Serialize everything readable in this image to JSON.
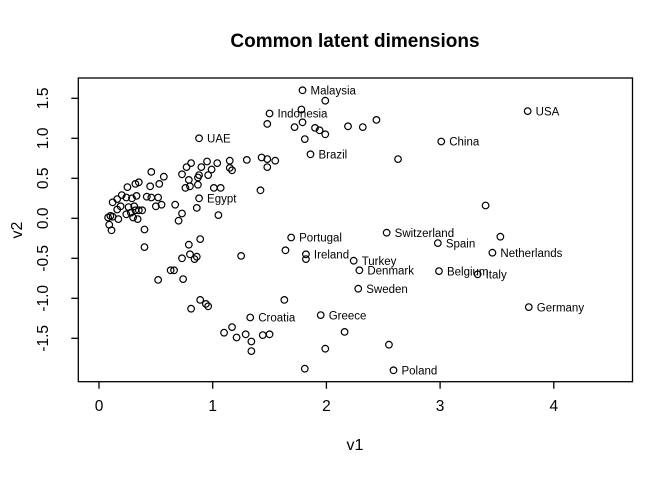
{
  "title": "Common latent dimensions",
  "colors": {
    "foreground": "#000000",
    "background": "#ffffff"
  },
  "chart_data": {
    "type": "scatter",
    "title": "Common latent dimensions",
    "xlabel": "v1",
    "ylabel": "v2",
    "xlim": [
      -0.18,
      4.69
    ],
    "ylim": [
      -2.04,
      1.75
    ],
    "grid": false,
    "legend": false,
    "marker": "open-circle",
    "x_ticks": [
      {
        "value": 0,
        "label": "0"
      },
      {
        "value": 1,
        "label": "1"
      },
      {
        "value": 2,
        "label": "2"
      },
      {
        "value": 3,
        "label": "3"
      },
      {
        "value": 4,
        "label": "4"
      }
    ],
    "y_ticks": [
      {
        "value": -1.5,
        "label": "-1.5"
      },
      {
        "value": -1.0,
        "label": "-1.0"
      },
      {
        "value": -0.5,
        "label": "-0.5"
      },
      {
        "value": 0.0,
        "label": "0.0"
      },
      {
        "value": 0.5,
        "label": "0.5"
      },
      {
        "value": 1.0,
        "label": "1.0"
      },
      {
        "value": 1.5,
        "label": "1.5"
      }
    ],
    "labeled_points": [
      {
        "label": "Malaysia",
        "x": 1.79,
        "y": 1.6
      },
      {
        "label": "USA",
        "x": 3.77,
        "y": 1.34
      },
      {
        "label": "Indonesia",
        "x": 1.5,
        "y": 1.31
      },
      {
        "label": "UAE",
        "x": 0.88,
        "y": 1.0
      },
      {
        "label": "China",
        "x": 3.01,
        "y": 0.96
      },
      {
        "label": "Brazil",
        "x": 1.86,
        "y": 0.8
      },
      {
        "label": "Egypt",
        "x": 0.88,
        "y": 0.25
      },
      {
        "label": "Switzerland",
        "x": 2.53,
        "y": -0.18
      },
      {
        "label": "Portugal",
        "x": 1.69,
        "y": -0.24
      },
      {
        "label": "Spain",
        "x": 2.98,
        "y": -0.31
      },
      {
        "label": "Netherlands",
        "x": 3.46,
        "y": -0.43
      },
      {
        "label": "Ireland",
        "x": 1.82,
        "y": -0.45
      },
      {
        "label": "Turkey",
        "x": 2.24,
        "y": -0.53
      },
      {
        "label": "Denmark",
        "x": 2.29,
        "y": -0.65
      },
      {
        "label": "Belgium",
        "x": 2.99,
        "y": -0.66
      },
      {
        "label": "Italy",
        "x": 3.33,
        "y": -0.7
      },
      {
        "label": "Sweden",
        "x": 2.28,
        "y": -0.88
      },
      {
        "label": "Germany",
        "x": 3.78,
        "y": -1.11
      },
      {
        "label": "Greece",
        "x": 1.95,
        "y": -1.21
      },
      {
        "label": "Croatia",
        "x": 1.33,
        "y": -1.24
      },
      {
        "label": "Poland",
        "x": 2.59,
        "y": -1.9
      }
    ],
    "unlabeled_points": [
      [
        0.46,
        0.58
      ],
      [
        0.57,
        0.52
      ],
      [
        0.73,
        0.55
      ],
      [
        0.77,
        0.64
      ],
      [
        0.79,
        0.48
      ],
      [
        0.81,
        0.69
      ],
      [
        0.32,
        0.43
      ],
      [
        0.35,
        0.45
      ],
      [
        0.25,
        0.39
      ],
      [
        0.45,
        0.4
      ],
      [
        0.53,
        0.43
      ],
      [
        0.76,
        0.38
      ],
      [
        0.8,
        0.4
      ],
      [
        0.2,
        0.29
      ],
      [
        0.16,
        0.24
      ],
      [
        0.12,
        0.2
      ],
      [
        0.24,
        0.26
      ],
      [
        0.29,
        0.25
      ],
      [
        0.33,
        0.28
      ],
      [
        0.42,
        0.27
      ],
      [
        0.46,
        0.26
      ],
      [
        0.52,
        0.26
      ],
      [
        0.55,
        0.17
      ],
      [
        0.5,
        0.15
      ],
      [
        0.31,
        0.15
      ],
      [
        0.26,
        0.14
      ],
      [
        0.19,
        0.15
      ],
      [
        0.16,
        0.11
      ],
      [
        0.08,
        0.01
      ],
      [
        0.1,
        0.03
      ],
      [
        0.12,
        0.02
      ],
      [
        0.17,
        -0.01
      ],
      [
        0.24,
        0.05
      ],
      [
        0.28,
        0.07
      ],
      [
        0.32,
        0.1
      ],
      [
        0.35,
        0.1
      ],
      [
        0.38,
        0.1
      ],
      [
        0.3,
        0.01
      ],
      [
        0.34,
        -0.01
      ],
      [
        0.09,
        -0.08
      ],
      [
        0.11,
        -0.15
      ],
      [
        0.4,
        -0.14
      ],
      [
        0.67,
        0.17
      ],
      [
        0.73,
        0.06
      ],
      [
        0.7,
        -0.03
      ],
      [
        0.79,
        -0.33
      ],
      [
        0.4,
        -0.36
      ],
      [
        0.73,
        -0.5
      ],
      [
        0.8,
        -0.45
      ],
      [
        0.84,
        -0.51
      ],
      [
        0.63,
        -0.65
      ],
      [
        0.66,
        -0.65
      ],
      [
        0.52,
        -0.77
      ],
      [
        0.74,
        -0.76
      ],
      [
        0.89,
        -1.02
      ],
      [
        0.94,
        -1.07
      ],
      [
        0.96,
        -1.1
      ],
      [
        0.81,
        -1.13
      ],
      [
        0.95,
        0.71
      ],
      [
        0.9,
        0.64
      ],
      [
        0.99,
        0.61
      ],
      [
        1.04,
        0.69
      ],
      [
        0.88,
        0.54
      ],
      [
        0.87,
        0.51
      ],
      [
        0.96,
        0.54
      ],
      [
        1.15,
        0.72
      ],
      [
        1.15,
        0.63
      ],
      [
        1.17,
        0.6
      ],
      [
        1.3,
        0.73
      ],
      [
        1.43,
        0.76
      ],
      [
        1.48,
        0.74
      ],
      [
        1.55,
        0.72
      ],
      [
        1.48,
        0.64
      ],
      [
        0.87,
        0.42
      ],
      [
        1.01,
        0.38
      ],
      [
        1.07,
        0.38
      ],
      [
        1.42,
        0.35
      ],
      [
        0.86,
        0.13
      ],
      [
        1.05,
        0.04
      ],
      [
        0.89,
        -0.26
      ],
      [
        0.86,
        -0.48
      ],
      [
        1.25,
        -0.47
      ],
      [
        1.64,
        -0.4
      ],
      [
        1.82,
        -0.51
      ],
      [
        1.99,
        1.47
      ],
      [
        1.78,
        1.36
      ],
      [
        1.48,
        1.18
      ],
      [
        1.72,
        1.14
      ],
      [
        1.79,
        1.2
      ],
      [
        1.9,
        1.13
      ],
      [
        1.94,
        1.1
      ],
      [
        1.99,
        1.05
      ],
      [
        1.81,
        0.99
      ],
      [
        2.19,
        1.15
      ],
      [
        2.32,
        1.14
      ],
      [
        2.44,
        1.23
      ],
      [
        2.63,
        0.74
      ],
      [
        3.4,
        0.16
      ],
      [
        3.53,
        -0.23
      ],
      [
        1.1,
        -1.43
      ],
      [
        1.17,
        -1.36
      ],
      [
        1.21,
        -1.49
      ],
      [
        1.29,
        -1.45
      ],
      [
        1.34,
        -1.54
      ],
      [
        1.34,
        -1.66
      ],
      [
        1.44,
        -1.46
      ],
      [
        1.5,
        -1.45
      ],
      [
        1.63,
        -1.02
      ],
      [
        2.16,
        -1.42
      ],
      [
        1.99,
        -1.63
      ],
      [
        2.55,
        -1.58
      ],
      [
        1.81,
        -1.88
      ]
    ]
  }
}
